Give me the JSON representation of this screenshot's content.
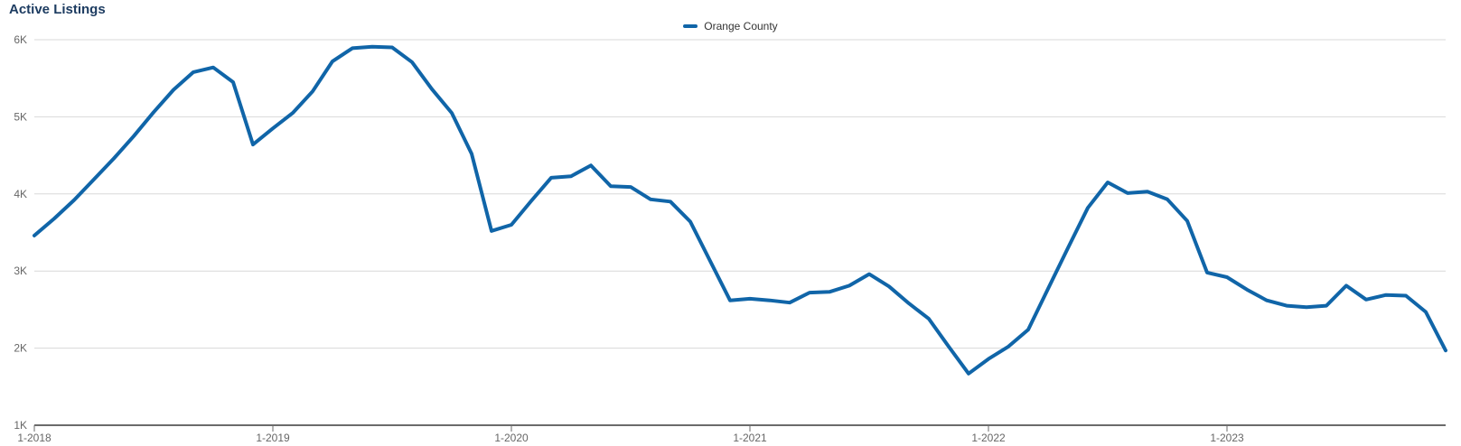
{
  "chart_data": {
    "type": "line",
    "title": "Active Listings",
    "x_unit": "month",
    "grid": true,
    "legend_position": "top-center",
    "ylim": [
      1000,
      6000
    ],
    "yticks": [
      {
        "label": "6K",
        "value": 6000
      },
      {
        "label": "5K",
        "value": 5000
      },
      {
        "label": "4K",
        "value": 4000
      },
      {
        "label": "3K",
        "value": 3000
      },
      {
        "label": "2K",
        "value": 2000
      },
      {
        "label": "1K",
        "value": 1000
      }
    ],
    "xticks": [
      {
        "label": "1-2018",
        "index": 0
      },
      {
        "label": "1-2019",
        "index": 12
      },
      {
        "label": "1-2020",
        "index": 24
      },
      {
        "label": "1-2021",
        "index": 36
      },
      {
        "label": "1-2022",
        "index": 48
      },
      {
        "label": "1-2023",
        "index": 60
      }
    ],
    "series": [
      {
        "name": "Orange County",
        "color": "#1065a8",
        "values": [
          3460,
          3680,
          3920,
          4190,
          4460,
          4750,
          5060,
          5350,
          5580,
          5640,
          5450,
          4640,
          4850,
          5050,
          5330,
          5720,
          5890,
          5910,
          5900,
          5710,
          5360,
          5050,
          4520,
          3520,
          3600,
          3910,
          4210,
          4230,
          4370,
          4100,
          4090,
          3930,
          3900,
          3640,
          3130,
          2620,
          2640,
          2620,
          2590,
          2720,
          2730,
          2810,
          2960,
          2800,
          2580,
          2380,
          2020,
          1670,
          1860,
          2020,
          2240,
          2770,
          3300,
          3820,
          4150,
          4010,
          4030,
          3930,
          3650,
          2980,
          2920,
          2760,
          2620,
          2550,
          2530,
          2550,
          2810,
          2630,
          2690,
          2680,
          2470,
          1970
        ]
      }
    ]
  },
  "colors": {
    "title": "#1d3c61",
    "axis_label": "#666666",
    "grid_line": "#d8d8d8",
    "axis_line": "#6b6b6b"
  }
}
